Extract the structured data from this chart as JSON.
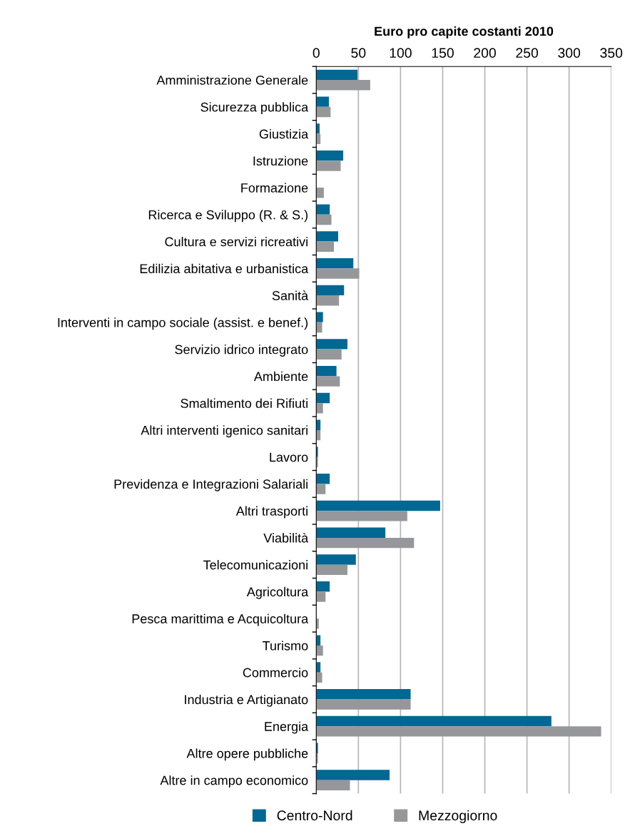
{
  "chart_data": {
    "type": "bar",
    "orientation": "horizontal",
    "xlabel": "Euro pro capite costanti 2010",
    "categories": [
      "Amministrazione Generale",
      "Sicurezza pubblica",
      "Giustizia",
      "Istruzione",
      "Formazione",
      "Ricerca e Sviluppo (R. & S.)",
      "Cultura e servizi ricreativi",
      "Edilizia abitativa e urbanistica",
      "Sanità",
      "Interventi in campo sociale (assist. e benef.)",
      "Servizio idrico integrato",
      "Ambiente",
      "Smaltimento dei Rifiuti",
      "Altri interventi igenico sanitari",
      "Lavoro",
      "Previdenza e Integrazioni Salariali",
      "Altri trasporti",
      "Viabilità",
      "Telecomunicazioni",
      "Agricoltura",
      "Pesca marittima e Acquicoltura",
      "Turismo",
      "Commercio",
      "Industria e Artigianato",
      "Energia",
      "Altre opere pubbliche",
      "Altre in campo economico"
    ],
    "series": [
      {
        "name": "Centro-Nord",
        "color": "#006892",
        "values": [
          49,
          15,
          4,
          32,
          0,
          16,
          26,
          44,
          33,
          8,
          37,
          24,
          16,
          5,
          2,
          16,
          147,
          82,
          47,
          16,
          0,
          5,
          5,
          112,
          279,
          2,
          87
        ]
      },
      {
        "name": "Mezzogiorno",
        "color": "#96979b",
        "values": [
          64,
          17,
          5,
          29,
          9,
          18,
          21,
          51,
          27,
          7,
          30,
          28,
          8,
          5,
          2,
          11,
          108,
          116,
          37,
          11,
          3,
          8,
          7,
          112,
          338,
          2,
          40
        ]
      }
    ],
    "xlim": [
      0,
      350
    ],
    "xticks": [
      0,
      50,
      100,
      150,
      200,
      250,
      300,
      350
    ],
    "grid": "x",
    "legend": "bottom"
  }
}
